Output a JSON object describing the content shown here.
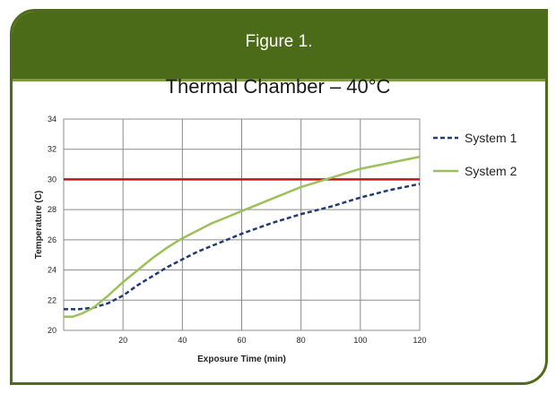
{
  "header": {
    "title": "Figure 1."
  },
  "chart_data": {
    "type": "line",
    "title": "Thermal Chamber – 40°C",
    "xlabel": "Exposure Time (min)",
    "ylabel": "Temperature (C)",
    "xlim": [
      0,
      120
    ],
    "ylim": [
      20,
      34
    ],
    "x_ticks": [
      20,
      40,
      60,
      80,
      100,
      120
    ],
    "y_ticks": [
      20,
      22,
      24,
      26,
      28,
      30,
      32,
      34
    ],
    "grid": true,
    "legend_position": "right",
    "reference_line": {
      "y": 30,
      "color": "#c0141b"
    },
    "series": [
      {
        "name": "System 1",
        "color": "#1f3b75",
        "style": "dashed",
        "x": [
          0,
          5,
          10,
          15,
          20,
          25,
          30,
          35,
          40,
          45,
          50,
          55,
          60,
          70,
          80,
          90,
          100,
          110,
          120
        ],
        "y": [
          21.4,
          21.4,
          21.5,
          21.8,
          22.3,
          23.0,
          23.6,
          24.2,
          24.7,
          25.2,
          25.6,
          26.0,
          26.4,
          27.1,
          27.7,
          28.2,
          28.8,
          29.3,
          29.7
        ]
      },
      {
        "name": "System 2",
        "color": "#9cc05b",
        "style": "solid",
        "x": [
          0,
          3,
          6,
          10,
          15,
          20,
          25,
          30,
          35,
          40,
          45,
          50,
          55,
          60,
          70,
          80,
          90,
          100,
          110,
          120
        ],
        "y": [
          20.9,
          20.9,
          21.1,
          21.5,
          22.3,
          23.2,
          24.0,
          24.8,
          25.5,
          26.1,
          26.6,
          27.1,
          27.5,
          27.9,
          28.7,
          29.5,
          30.1,
          30.7,
          31.1,
          31.5
        ]
      }
    ]
  }
}
